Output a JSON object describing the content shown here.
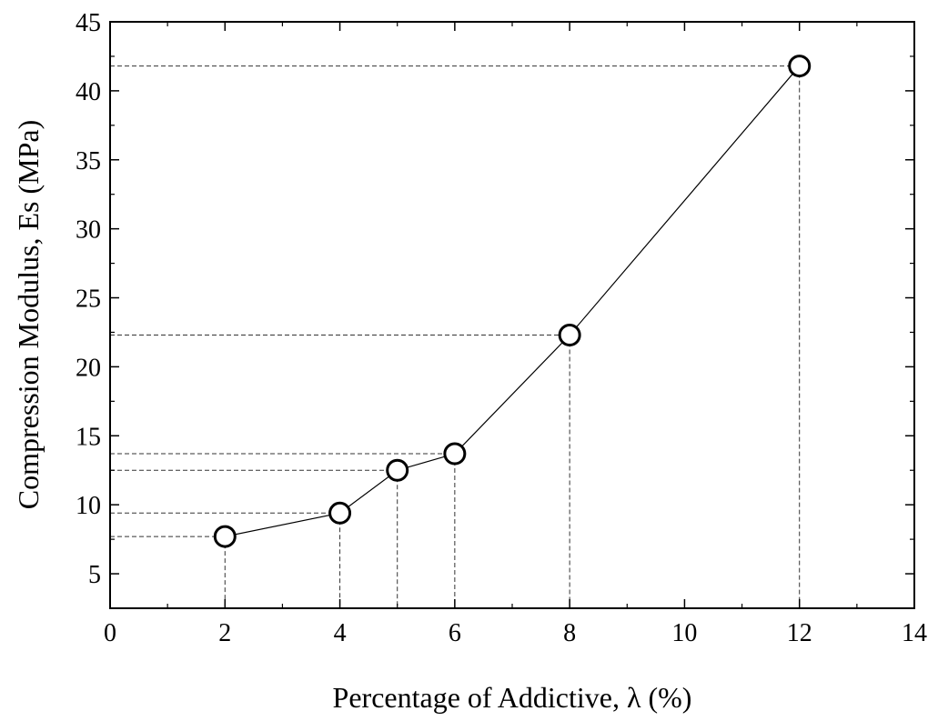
{
  "chart_data": {
    "type": "line",
    "xlabel": "Percentage of Addictive, λ (%)",
    "ylabel": "Compression Modulus, Es (MPa)",
    "xlim": [
      0,
      14
    ],
    "ylim": [
      2.5,
      45
    ],
    "x_ticks": [
      0,
      2,
      4,
      6,
      8,
      10,
      12,
      14
    ],
    "y_ticks": [
      5,
      10,
      15,
      20,
      25,
      30,
      35,
      40,
      45
    ],
    "grid": false,
    "legend": "none",
    "series": [
      {
        "x": [
          2,
          4,
          5,
          6,
          8,
          12
        ],
        "y": [
          7.7,
          9.4,
          12.5,
          13.7,
          22.3,
          41.8
        ],
        "marker": "open-circle",
        "dashed_drop_lines": true
      }
    ]
  }
}
